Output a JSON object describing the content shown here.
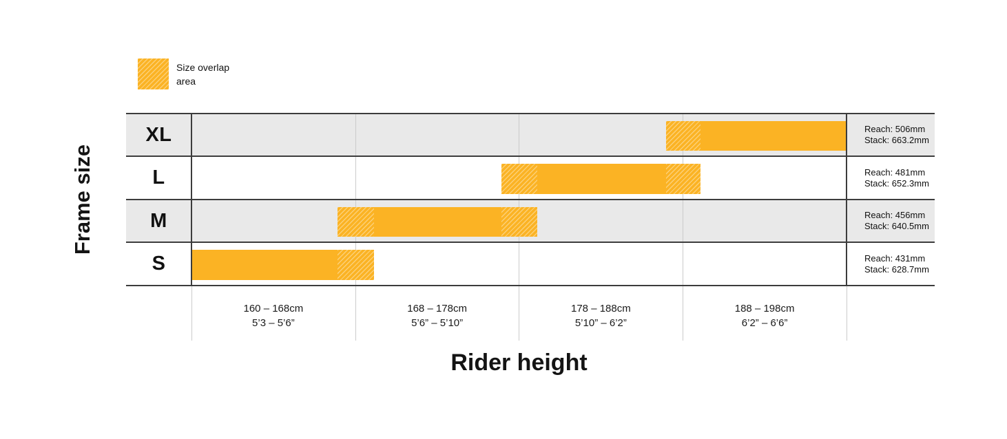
{
  "colors": {
    "bar_yellow": "#FBB324",
    "row_alt_bg": "#E9E9E9",
    "line_dark": "#3C3C3C",
    "grid_light": "#CBCBCB"
  },
  "chart_data": {
    "type": "bar",
    "orientation": "horizontal-range",
    "legend": {
      "label": "Size overlap\narea"
    },
    "x_axis": {
      "title": "Rider height",
      "range_cm": [
        160,
        198
      ],
      "band_boundaries_cm": [
        160,
        168,
        178,
        188,
        198
      ],
      "categories": [
        {
          "cm": "160 – 168cm",
          "imperial": "5’3 – 5’6”"
        },
        {
          "cm": "168 – 178cm",
          "imperial": "5’6” – 5’10”"
        },
        {
          "cm": "178 – 188cm",
          "imperial": "5’10” – 6’2”"
        },
        {
          "cm": "188 – 198cm",
          "imperial": "6’2” – 6’6”"
        }
      ]
    },
    "y_axis": {
      "title": "Frame size",
      "categories": [
        "XL",
        "L",
        "M",
        "S"
      ]
    },
    "rows": [
      {
        "size": "XL",
        "reach_label": "Reach: 506mm",
        "stack_label": "Stack: 663.2mm",
        "height_range_cm": [
          187,
          198
        ],
        "overlap_ranges_cm": [
          [
            187,
            189
          ]
        ],
        "bar_pct": [
          72.5,
          100
        ],
        "overlap_pct": [
          [
            72.5,
            77.71
          ]
        ],
        "shaded_row": true
      },
      {
        "size": "L",
        "reach_label": "Reach: 481mm",
        "stack_label": "Stack: 652.3mm",
        "height_range_cm": [
          177,
          189
        ],
        "overlap_ranges_cm": [
          [
            177,
            179
          ],
          [
            187,
            189
          ]
        ],
        "bar_pct": [
          47.35,
          77.71
        ],
        "overlap_pct": [
          [
            47.35,
            52.79
          ],
          [
            72.5,
            77.71
          ]
        ],
        "shaded_row": false
      },
      {
        "size": "M",
        "reach_label": "Reach: 456mm",
        "stack_label": "Stack: 640.5mm",
        "height_range_cm": [
          167,
          179
        ],
        "overlap_ranges_cm": [
          [
            167,
            169
          ],
          [
            177,
            179
          ]
        ],
        "bar_pct": [
          22.29,
          52.79
        ],
        "overlap_pct": [
          [
            22.29,
            27.87
          ],
          [
            47.35,
            52.79
          ]
        ],
        "shaded_row": true
      },
      {
        "size": "S",
        "reach_label": "Reach: 431mm",
        "stack_label": "Stack: 628.7mm",
        "height_range_cm": [
          160,
          169
        ],
        "overlap_ranges_cm": [
          [
            167,
            169
          ]
        ],
        "bar_pct": [
          0,
          27.87
        ],
        "overlap_pct": [
          [
            22.29,
            27.87
          ]
        ],
        "shaded_row": false
      }
    ]
  }
}
